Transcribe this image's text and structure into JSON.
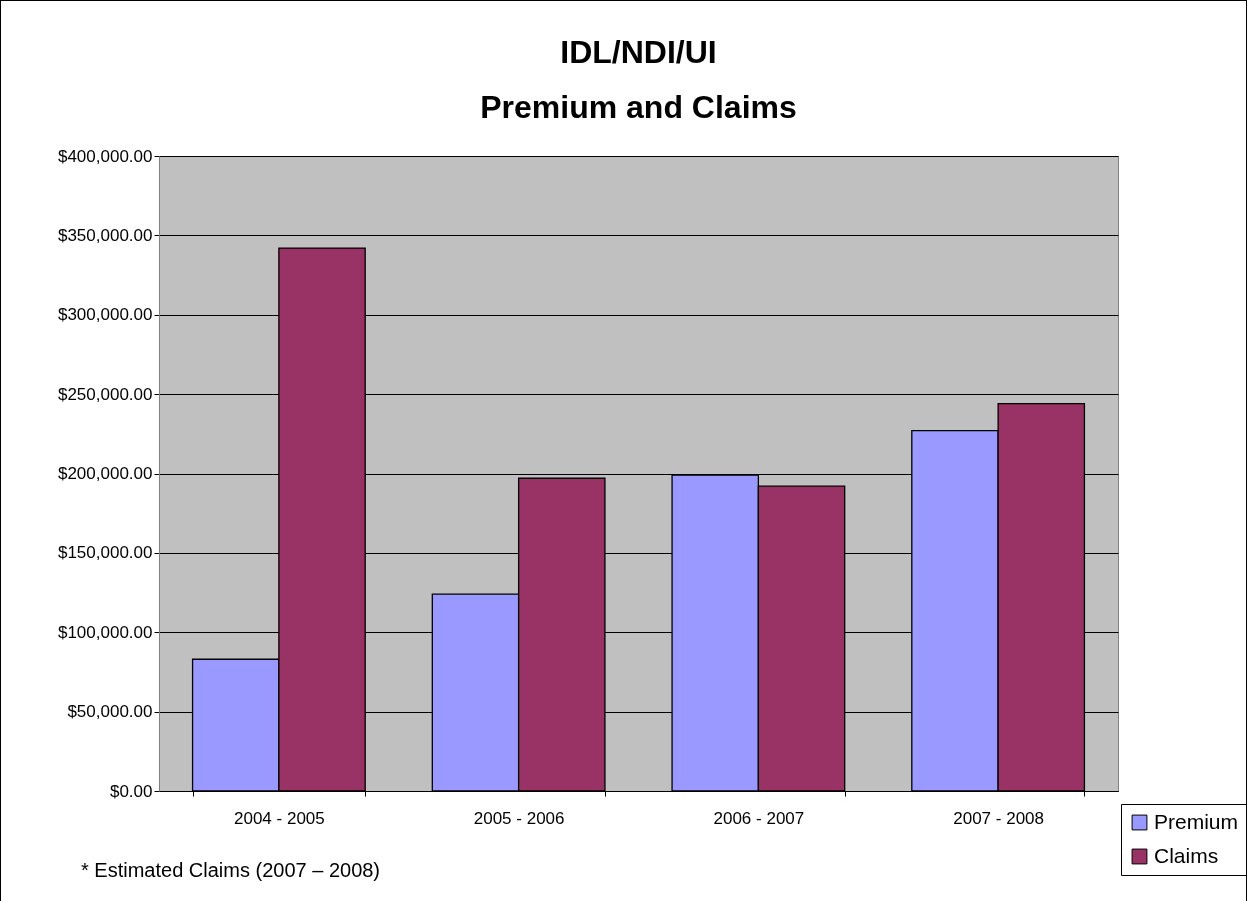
{
  "chart_data": {
    "type": "bar",
    "title": "IDL/NDI/UI\nPremium and Claims",
    "categories": [
      "2004 - 2005",
      "2005 - 2006",
      "2006 - 2007",
      "2007 - 2008"
    ],
    "series": [
      {
        "name": "Premium",
        "color": "#9999ff",
        "values": [
          83000,
          124000,
          199000,
          227000
        ]
      },
      {
        "name": "Claims",
        "color": "#993366",
        "values": [
          342000,
          197000,
          192000,
          244000
        ]
      }
    ],
    "ylim": [
      0,
      400000
    ],
    "yticks": [
      {
        "value": 0,
        "label": "$0.00"
      },
      {
        "value": 50000,
        "label": "$50,000.00"
      },
      {
        "value": 100000,
        "label": "$100,000.00"
      },
      {
        "value": 150000,
        "label": "$150,000.00"
      },
      {
        "value": 200000,
        "label": "$200,000.00"
      },
      {
        "value": 250000,
        "label": "$250,000.00"
      },
      {
        "value": 300000,
        "label": "$300,000.00"
      },
      {
        "value": 350000,
        "label": "$350,000.00"
      },
      {
        "value": 400000,
        "label": "$400,000.00"
      }
    ],
    "grid": "y",
    "legend": "bottom right",
    "annotations": [
      "* Estimated Claims (2007 – 2008)"
    ]
  }
}
